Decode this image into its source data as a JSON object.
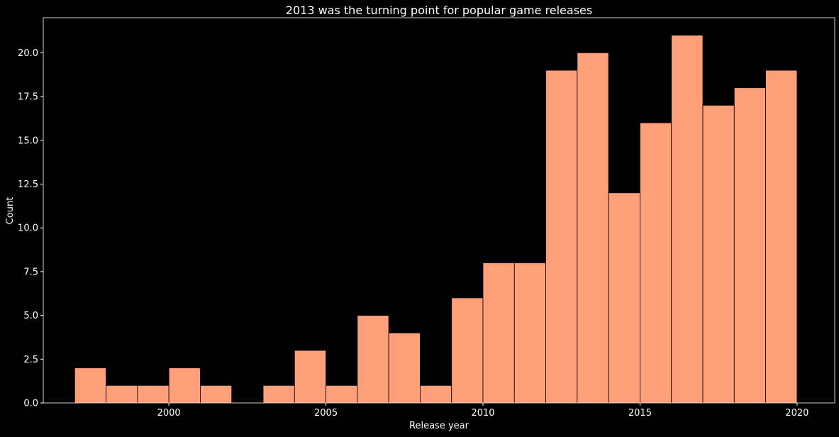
{
  "chart_data": {
    "type": "bar",
    "title": "2013 was the turning point for popular game releases",
    "xlabel": "Release year",
    "ylabel": "Count",
    "xlim": [
      1996.0,
      2021.2
    ],
    "ylim": [
      0,
      22
    ],
    "x_ticks": [
      2000,
      2005,
      2010,
      2015,
      2020
    ],
    "y_ticks": [
      0.0,
      2.5,
      5.0,
      7.5,
      10.0,
      12.5,
      15.0,
      17.5,
      20.0
    ],
    "grid": false,
    "bins": [
      {
        "start": 1997,
        "end": 1998,
        "count": 2
      },
      {
        "start": 1998,
        "end": 1999,
        "count": 1
      },
      {
        "start": 1999,
        "end": 2000,
        "count": 1
      },
      {
        "start": 2000,
        "end": 2001,
        "count": 2
      },
      {
        "start": 2001,
        "end": 2002,
        "count": 1
      },
      {
        "start": 2002,
        "end": 2003,
        "count": 0
      },
      {
        "start": 2003,
        "end": 2004,
        "count": 1
      },
      {
        "start": 2004,
        "end": 2005,
        "count": 3
      },
      {
        "start": 2005,
        "end": 2006,
        "count": 1
      },
      {
        "start": 2006,
        "end": 2007,
        "count": 5
      },
      {
        "start": 2007,
        "end": 2008,
        "count": 4
      },
      {
        "start": 2008,
        "end": 2009,
        "count": 1
      },
      {
        "start": 2009,
        "end": 2010,
        "count": 6
      },
      {
        "start": 2010,
        "end": 2011,
        "count": 8
      },
      {
        "start": 2011,
        "end": 2012,
        "count": 8
      },
      {
        "start": 2012,
        "end": 2013,
        "count": 19
      },
      {
        "start": 2013,
        "end": 2014,
        "count": 20
      },
      {
        "start": 2014,
        "end": 2015,
        "count": 12
      },
      {
        "start": 2015,
        "end": 2016,
        "count": 16
      },
      {
        "start": 2016,
        "end": 2017,
        "count": 21
      },
      {
        "start": 2017,
        "end": 2018,
        "count": 17
      },
      {
        "start": 2018,
        "end": 2019,
        "count": 18
      },
      {
        "start": 2019,
        "end": 2020,
        "count": 19
      }
    ],
    "colors": {
      "background": "#000000",
      "bar_fill": "#ffa07a",
      "bar_edge": "#000000",
      "text": "#ffffff",
      "axis": "#ffffff"
    }
  }
}
